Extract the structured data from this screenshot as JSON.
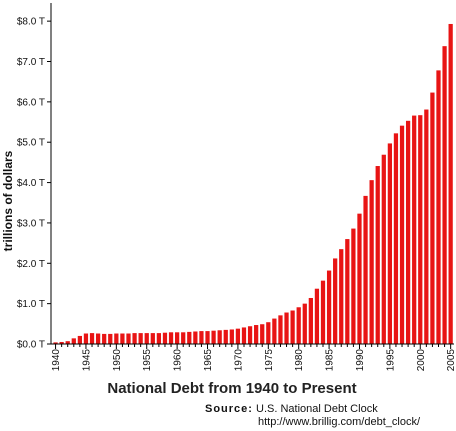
{
  "chart_data": {
    "type": "bar",
    "title": "National Debt from 1940 to Present",
    "xlabel": "",
    "ylabel": "trillions of dollars",
    "ylim": [
      0,
      8.4
    ],
    "yticks": [
      0,
      1,
      2,
      3,
      4,
      5,
      6,
      7,
      8
    ],
    "ytick_labels": [
      "$0.0 T",
      "$1.0 T",
      "$2.0 T",
      "$3.0 T",
      "$4.0 T",
      "$5.0 T",
      "$6.0 T",
      "$7.0 T",
      "$8.0 T"
    ],
    "xtick_labels": [
      "1940",
      "1945",
      "1950",
      "1955",
      "1960",
      "1965",
      "1970",
      "1975",
      "1980",
      "1985",
      "1990",
      "1995",
      "2000",
      "2005"
    ],
    "categories": [
      "1940",
      "1941",
      "1942",
      "1943",
      "1944",
      "1945",
      "1946",
      "1947",
      "1948",
      "1949",
      "1950",
      "1951",
      "1952",
      "1953",
      "1954",
      "1955",
      "1956",
      "1957",
      "1958",
      "1959",
      "1960",
      "1961",
      "1962",
      "1963",
      "1964",
      "1965",
      "1966",
      "1967",
      "1968",
      "1969",
      "1970",
      "1971",
      "1972",
      "1973",
      "1974",
      "1975",
      "1976",
      "1977",
      "1978",
      "1979",
      "1980",
      "1981",
      "1982",
      "1983",
      "1984",
      "1985",
      "1986",
      "1987",
      "1988",
      "1989",
      "1990",
      "1991",
      "1992",
      "1993",
      "1994",
      "1995",
      "1996",
      "1997",
      "1998",
      "1999",
      "2000",
      "2001",
      "2002",
      "2003",
      "2004",
      "2005"
    ],
    "values": [
      0.04,
      0.05,
      0.07,
      0.14,
      0.2,
      0.26,
      0.27,
      0.26,
      0.25,
      0.25,
      0.26,
      0.26,
      0.26,
      0.27,
      0.27,
      0.27,
      0.27,
      0.27,
      0.28,
      0.29,
      0.29,
      0.29,
      0.3,
      0.31,
      0.32,
      0.32,
      0.33,
      0.34,
      0.35,
      0.36,
      0.38,
      0.41,
      0.44,
      0.47,
      0.49,
      0.54,
      0.63,
      0.71,
      0.78,
      0.83,
      0.91,
      1.0,
      1.14,
      1.37,
      1.57,
      1.82,
      2.12,
      2.35,
      2.6,
      2.86,
      3.23,
      3.67,
      4.06,
      4.41,
      4.69,
      4.97,
      5.22,
      5.41,
      5.53,
      5.66,
      5.67,
      5.81,
      6.23,
      6.78,
      7.38,
      7.93
    ],
    "bar_color": "#e81414",
    "grid": false
  },
  "source": {
    "label": "Source:",
    "name": "U.S. National Debt Clock",
    "url": "http://www.brillig.com/debt_clock/"
  }
}
